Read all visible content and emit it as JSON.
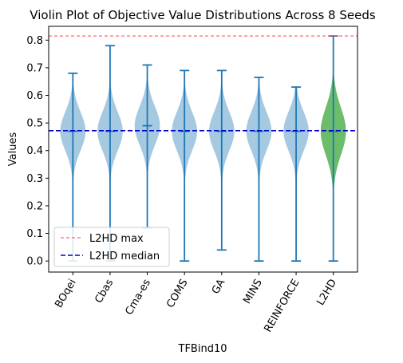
{
  "chart_data": {
    "type": "violin",
    "title": "Violin Plot of Objective Value Distributions Across 8 Seeds",
    "xlabel": "TFBind10",
    "ylabel": "Values",
    "ylim": [
      -0.04,
      0.85
    ],
    "yticks": [
      0.0,
      0.1,
      0.2,
      0.3,
      0.4,
      0.5,
      0.6,
      0.7,
      0.8
    ],
    "grid": false,
    "categories": [
      "BOqei",
      "Cbas",
      "Cma-es",
      "COMS",
      "GA",
      "MINS",
      "REINFORCE",
      "L2HD"
    ],
    "series": [
      {
        "min": 0.0,
        "max": 0.68,
        "median": 0.47,
        "color": "#1f77b4"
      },
      {
        "min": 0.0,
        "max": 0.78,
        "median": 0.47,
        "color": "#1f77b4"
      },
      {
        "min": 0.12,
        "max": 0.71,
        "median": 0.49,
        "color": "#1f77b4"
      },
      {
        "min": 0.0,
        "max": 0.69,
        "median": 0.47,
        "color": "#1f77b4"
      },
      {
        "min": 0.04,
        "max": 0.69,
        "median": 0.47,
        "color": "#1f77b4"
      },
      {
        "min": 0.0,
        "max": 0.665,
        "median": 0.47,
        "color": "#1f77b4"
      },
      {
        "min": 0.0,
        "max": 0.63,
        "median": 0.47,
        "color": "#1f77b4"
      },
      {
        "min": 0.0,
        "max": 0.815,
        "median": 0.47,
        "color": "#2ca02c"
      }
    ],
    "reference_lines": [
      {
        "label": "L2HD max",
        "value": 0.815,
        "color": "#ff4444",
        "style": "dashed"
      },
      {
        "label": "L2HD median",
        "value": 0.472,
        "color": "#0000cc",
        "style": "dashed"
      }
    ],
    "legend_placement": "lower-left"
  }
}
